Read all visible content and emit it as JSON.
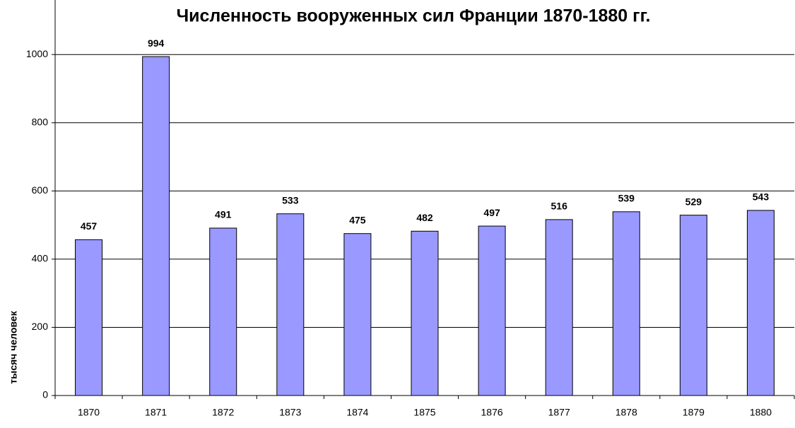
{
  "chart_data": {
    "type": "bar",
    "title": "Численность вооруженных сил Франции 1870-1880 гг.",
    "y_label": "тысяч человек",
    "categories": [
      "1870",
      "1871",
      "1872",
      "1873",
      "1874",
      "1875",
      "1876",
      "1877",
      "1878",
      "1879",
      "1880"
    ],
    "values": [
      457,
      994,
      491,
      533,
      475,
      482,
      497,
      516,
      539,
      529,
      543
    ],
    "color": "#9999ff",
    "ylim": [
      0,
      1160
    ],
    "yticks": [
      0,
      200,
      400,
      600,
      800,
      1000
    ],
    "grid": true
  }
}
